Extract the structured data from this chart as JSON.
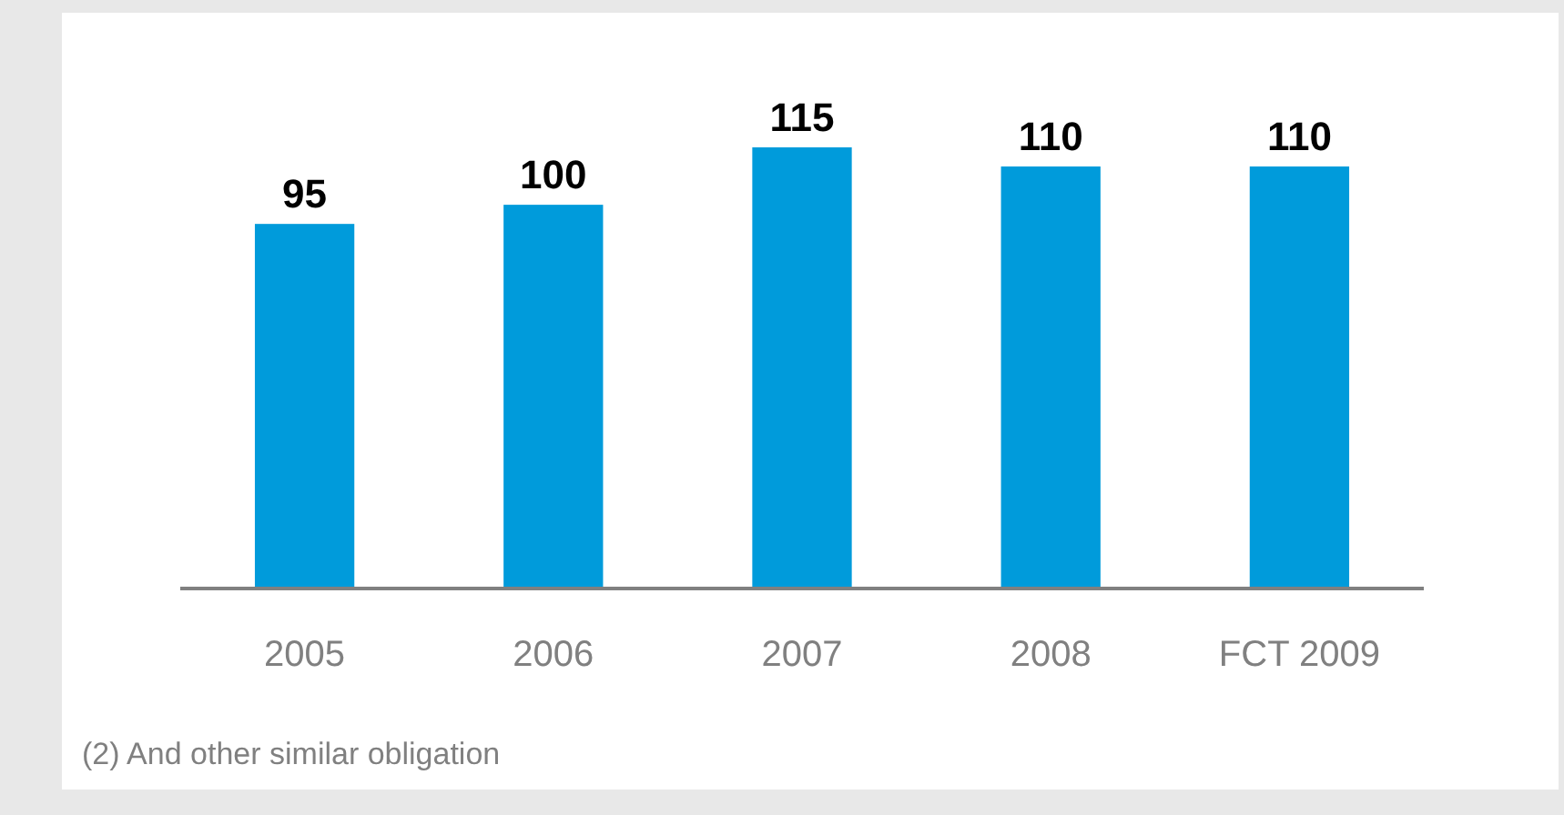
{
  "chart_data": {
    "type": "bar",
    "categories": [
      "2005",
      "2006",
      "2007",
      "2008",
      "FCT 2009"
    ],
    "values": [
      95,
      100,
      115,
      110,
      110
    ],
    "color": "#009bdb",
    "data_labels": true,
    "annotations": [
      "(2) And other similar obligation"
    ]
  }
}
